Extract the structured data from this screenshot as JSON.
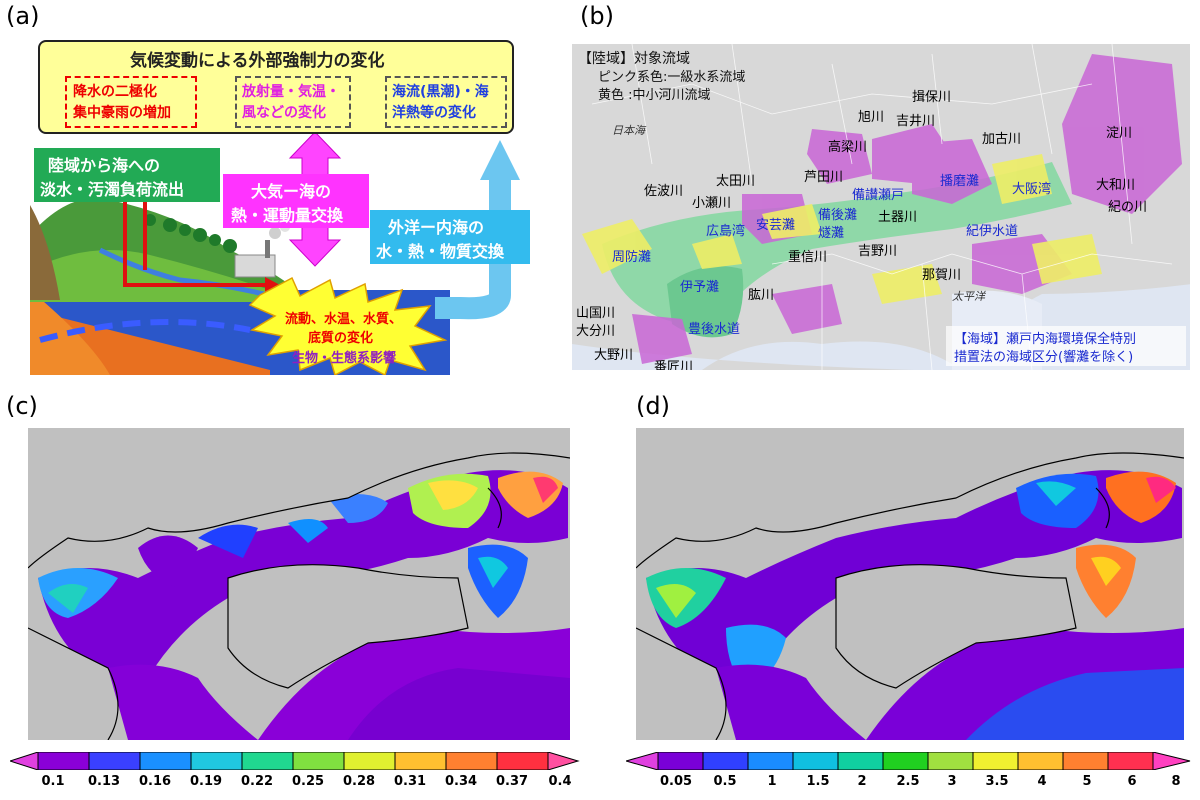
{
  "labels": {
    "a": "(a)",
    "b": "(b)",
    "c": "(c)",
    "d": "(d)"
  },
  "panel_a": {
    "top_title": "気候変動による外部強制力の変化",
    "box1": [
      "降水の二極化",
      "集中豪雨の増加"
    ],
    "box2": [
      "放射量・気温・",
      "風などの変化"
    ],
    "box3": [
      "海流(黒潮)・海",
      "洋熱等の変化"
    ],
    "green": [
      "陸域から海への",
      "淡水・汚濁負荷流出"
    ],
    "pink": [
      "大気ー海の",
      "熱・運動量交換"
    ],
    "blue": [
      "外洋ー内海の",
      "水・熱・物質交換"
    ],
    "burst_red": [
      "流動、水温、水質、",
      "底質の変化"
    ],
    "burst_purple": "生物・生態系影響"
  },
  "panel_b": {
    "legend": [
      "【陸域】対象流域",
      "ピンク系色:一級水系流域",
      "黄色  :中小河川流域"
    ],
    "sea_note": [
      "【海域】瀬戸内海環境保全特別",
      "措置法の海域区分(響灘を除く)"
    ],
    "japan_sea": "日本海",
    "pacific": "太平洋",
    "rivers": [
      "揖保川",
      "旭川",
      "吉井川",
      "淀川",
      "高梁川",
      "加古川",
      "太田川",
      "芦田川",
      "大和川",
      "佐波川",
      "小瀬川",
      "紀の川",
      "土器川",
      "重信川",
      "吉野川",
      "那賀川",
      "肱川",
      "山国川",
      "大分川",
      "大野川",
      "番匠川"
    ],
    "seas": [
      "播磨灘",
      "備讃瀬戸",
      "大阪湾",
      "備後灘",
      "燧灘",
      "安芸灘",
      "広島湾",
      "紀伊水道",
      "周防灘",
      "伊予灘",
      "豊後水道"
    ]
  },
  "colorbar_c": {
    "labels": [
      "0.1",
      "0.13",
      "0.16",
      "0.19",
      "0.22",
      "0.25",
      "0.28",
      "0.31",
      "0.34",
      "0.37",
      "0.4"
    ]
  },
  "colorbar_d": {
    "labels": [
      "0.05",
      "0.5",
      "1",
      "1.5",
      "2",
      "2.5",
      "3",
      "3.5",
      "4",
      "5",
      "6",
      "8"
    ]
  },
  "colors": {
    "yellow": "#ffff99",
    "green": "#22aa55",
    "pink": "#ff33ff",
    "blue": "#33bbee",
    "burst": "#ffff33"
  }
}
